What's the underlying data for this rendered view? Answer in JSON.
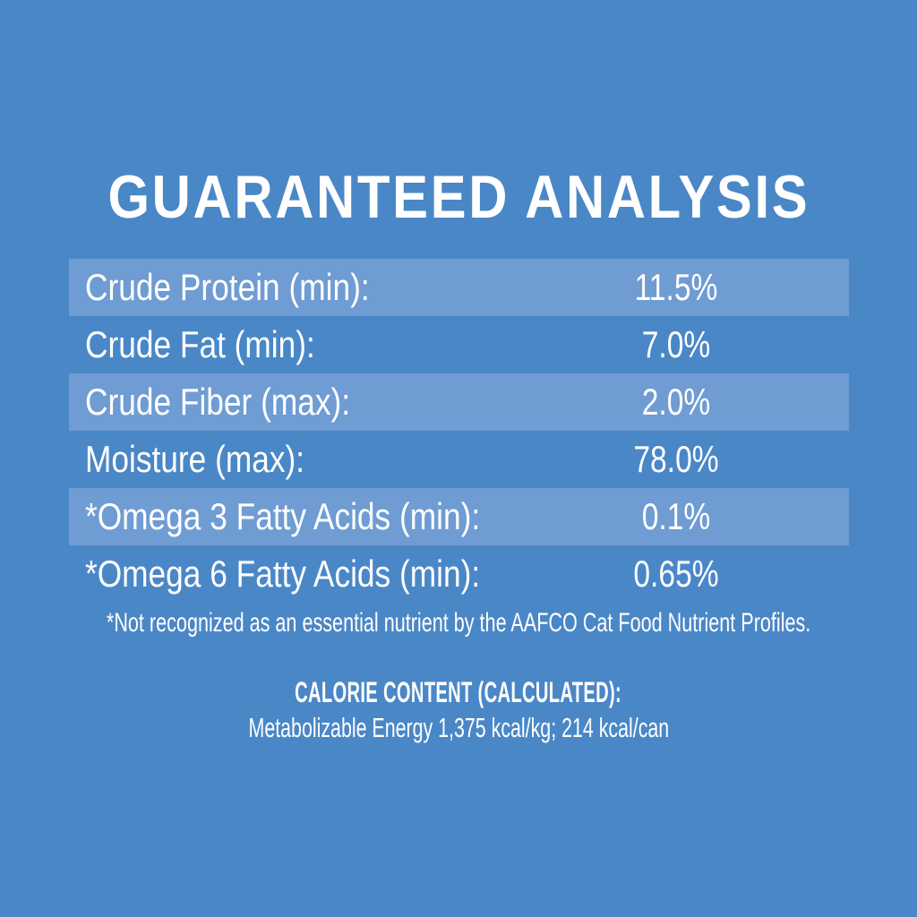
{
  "title": "GUARANTEED ANALYSIS",
  "table": {
    "rows": [
      {
        "label": "Crude Protein (min):",
        "value": "11.5%"
      },
      {
        "label": "Crude Fat (min):",
        "value": "7.0%"
      },
      {
        "label": "Crude Fiber (max):",
        "value": "2.0%"
      },
      {
        "label": "Moisture (max):",
        "value": "78.0%"
      },
      {
        "label": "*Omega 3 Fatty Acids (min):",
        "value": "0.1%"
      },
      {
        "label": "*Omega 6 Fatty Acids (min):",
        "value": "0.65%"
      }
    ]
  },
  "footnote": "*Not recognized as an essential nutrient by the AAFCO Cat Food Nutrient Profiles.",
  "calorie_content": {
    "heading": "CALORIE CONTENT (CALCULATED):",
    "line": "Metabolizable Energy 1,375 kcal/kg; 214 kcal/can"
  },
  "colors": {
    "background": "#4a87c7",
    "row_stripe": "#6f9cd3",
    "text": "#ffffff"
  }
}
